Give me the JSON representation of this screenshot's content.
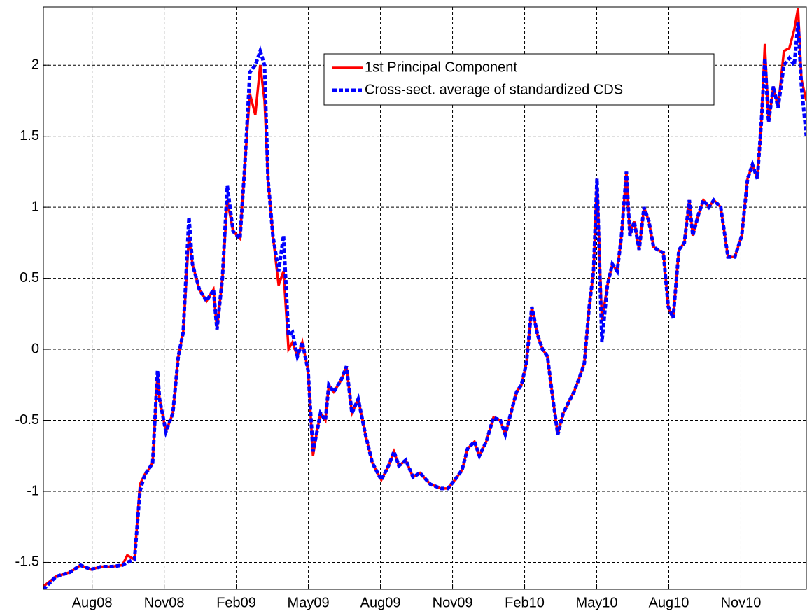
{
  "chart_data": {
    "type": "line",
    "legend": "top-right",
    "grid": true,
    "xlim": [
      2008.414,
      2011.06
    ],
    "ylim": [
      -1.69,
      2.41
    ],
    "xticks": [
      {
        "value": 2008.583,
        "label": "Aug08"
      },
      {
        "value": 2008.833,
        "label": "Nov08"
      },
      {
        "value": 2009.083,
        "label": "Feb09"
      },
      {
        "value": 2009.333,
        "label": "May09"
      },
      {
        "value": 2009.583,
        "label": "Aug09"
      },
      {
        "value": 2009.833,
        "label": "Nov09"
      },
      {
        "value": 2010.083,
        "label": "Feb10"
      },
      {
        "value": 2010.333,
        "label": "May10"
      },
      {
        "value": 2010.583,
        "label": "Aug10"
      },
      {
        "value": 2010.833,
        "label": "Nov10"
      }
    ],
    "yticks": [
      -1.5,
      -1,
      -0.5,
      0,
      0.5,
      1,
      1.5,
      2
    ],
    "x": [
      2008.414,
      2008.458,
      2008.506,
      2008.543,
      2008.579,
      2008.615,
      2008.652,
      2008.688,
      2008.705,
      2008.73,
      2008.749,
      2008.766,
      2008.778,
      2008.793,
      2008.81,
      2008.817,
      2008.839,
      2008.863,
      2008.882,
      2008.899,
      2008.919,
      2008.931,
      2008.955,
      2008.98,
      2009.004,
      2009.016,
      2009.035,
      2009.052,
      2009.072,
      2009.096,
      2009.113,
      2009.13,
      2009.149,
      2009.166,
      2009.181,
      2009.193,
      2009.21,
      2009.23,
      2009.247,
      2009.264,
      2009.278,
      2009.295,
      2009.312,
      2009.332,
      2009.349,
      2009.361,
      2009.375,
      2009.392,
      2009.404,
      2009.421,
      2009.446,
      2009.465,
      2009.484,
      2009.506,
      2009.531,
      2009.555,
      2009.586,
      2009.611,
      2009.63,
      2009.647,
      2009.671,
      2009.696,
      2009.72,
      2009.756,
      2009.793,
      2009.817,
      2009.841,
      2009.866,
      2009.885,
      2009.909,
      2009.926,
      2009.95,
      2009.975,
      2009.999,
      2010.016,
      2010.035,
      2010.055,
      2010.072,
      2010.089,
      2010.108,
      2010.128,
      2010.145,
      2010.162,
      2010.181,
      2010.198,
      2010.217,
      2010.234,
      2010.254,
      2010.273,
      2010.29,
      2010.307,
      2010.322,
      2010.334,
      2010.351,
      2010.37,
      2010.387,
      2010.404,
      2010.419,
      2010.436,
      2010.448,
      2010.463,
      2010.48,
      2010.497,
      2010.514,
      2010.53,
      2010.545,
      2010.564,
      2010.581,
      2010.598,
      2010.618,
      2010.637,
      2010.654,
      2010.666,
      2010.686,
      2010.703,
      2010.722,
      2010.739,
      2010.763,
      2010.788,
      2010.812,
      2010.836,
      2010.856,
      2010.873,
      2010.89,
      2010.904,
      2010.916,
      2010.929,
      2010.946,
      2010.962,
      2010.982,
      2011.001,
      2011.018,
      2011.031,
      2011.043,
      2011.06
    ],
    "series": [
      {
        "name": "1st Principal Component",
        "color": "#ff0000",
        "dash": false,
        "values": [
          -1.67,
          -1.6,
          -1.57,
          -1.52,
          -1.55,
          -1.53,
          -1.53,
          -1.52,
          -1.45,
          -1.48,
          -0.95,
          -0.88,
          -0.85,
          -0.8,
          -0.17,
          -0.35,
          -0.58,
          -0.45,
          -0.05,
          0.12,
          0.8,
          0.6,
          0.42,
          0.34,
          0.42,
          0.14,
          0.5,
          1.05,
          0.83,
          0.78,
          1.3,
          1.8,
          1.65,
          2.0,
          1.75,
          1.2,
          0.8,
          0.45,
          0.55,
          0.0,
          0.05,
          -0.05,
          0.05,
          -0.15,
          -0.75,
          -0.6,
          -0.45,
          -0.5,
          -0.25,
          -0.3,
          -0.22,
          -0.12,
          -0.45,
          -0.35,
          -0.6,
          -0.8,
          -0.92,
          -0.82,
          -0.72,
          -0.82,
          -0.78,
          -0.9,
          -0.87,
          -0.95,
          -0.98,
          -0.98,
          -0.92,
          -0.85,
          -0.7,
          -0.65,
          -0.75,
          -0.65,
          -0.48,
          -0.5,
          -0.6,
          -0.45,
          -0.3,
          -0.25,
          -0.1,
          0.3,
          0.1,
          0.0,
          -0.05,
          -0.35,
          -0.6,
          -0.45,
          -0.38,
          -0.3,
          -0.2,
          -0.1,
          0.3,
          0.55,
          1.2,
          0.2,
          0.45,
          0.6,
          0.55,
          0.8,
          1.25,
          0.8,
          0.9,
          0.7,
          1.0,
          0.9,
          0.72,
          0.7,
          0.68,
          0.3,
          0.22,
          0.7,
          0.75,
          1.05,
          0.8,
          0.95,
          1.05,
          1.0,
          1.05,
          1.0,
          0.65,
          0.65,
          0.8,
          1.2,
          1.3,
          1.2,
          1.6,
          2.15,
          1.6,
          1.85,
          1.7,
          2.1,
          2.12,
          2.25,
          2.4,
          1.9,
          1.75
        ]
      },
      {
        "name": "Cross-sect. average of standardized CDS",
        "color": "#0000ff",
        "dash": true,
        "values": [
          -1.69,
          -1.6,
          -1.57,
          -1.52,
          -1.55,
          -1.53,
          -1.53,
          -1.52,
          -1.5,
          -1.48,
          -1.0,
          -0.88,
          -0.85,
          -0.8,
          -0.15,
          -0.35,
          -0.58,
          -0.45,
          -0.05,
          0.12,
          0.93,
          0.6,
          0.42,
          0.34,
          0.42,
          0.14,
          0.5,
          1.15,
          0.83,
          0.78,
          1.3,
          1.95,
          2.0,
          2.1,
          2.0,
          1.2,
          0.8,
          0.55,
          0.8,
          0.1,
          0.12,
          -0.05,
          0.05,
          -0.15,
          -0.72,
          -0.6,
          -0.45,
          -0.5,
          -0.25,
          -0.3,
          -0.22,
          -0.12,
          -0.45,
          -0.35,
          -0.6,
          -0.8,
          -0.92,
          -0.82,
          -0.72,
          -0.82,
          -0.78,
          -0.9,
          -0.87,
          -0.95,
          -0.98,
          -0.98,
          -0.92,
          -0.85,
          -0.7,
          -0.65,
          -0.75,
          -0.65,
          -0.48,
          -0.5,
          -0.6,
          -0.45,
          -0.3,
          -0.25,
          -0.1,
          0.3,
          0.1,
          0.0,
          -0.05,
          -0.35,
          -0.6,
          -0.45,
          -0.38,
          -0.3,
          -0.2,
          -0.1,
          0.3,
          0.55,
          1.2,
          0.05,
          0.45,
          0.6,
          0.55,
          0.8,
          1.25,
          0.8,
          0.9,
          0.7,
          1.0,
          0.9,
          0.72,
          0.7,
          0.68,
          0.3,
          0.22,
          0.7,
          0.75,
          1.05,
          0.8,
          0.95,
          1.05,
          1.0,
          1.05,
          1.0,
          0.65,
          0.65,
          0.8,
          1.2,
          1.3,
          1.2,
          1.6,
          2.05,
          1.6,
          1.85,
          1.7,
          2.0,
          2.05,
          2.0,
          2.3,
          1.85,
          1.5
        ]
      }
    ]
  }
}
